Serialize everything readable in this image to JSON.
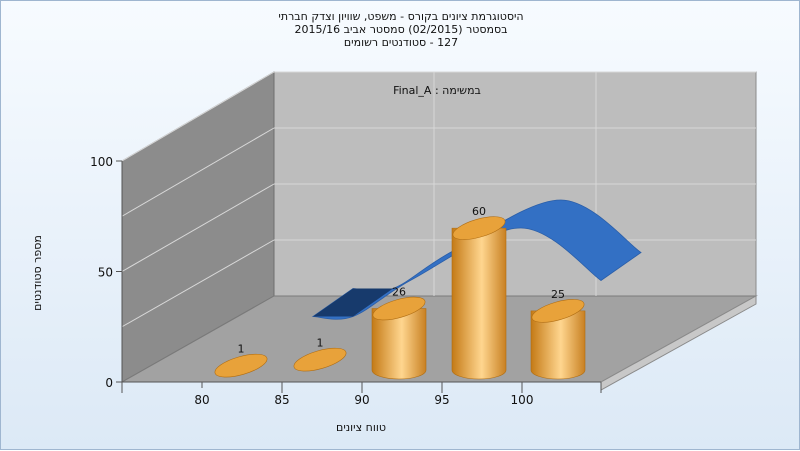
{
  "chart_data": {
    "type": "bar",
    "title_lines": [
      "היסטוגרמת ציונים בקורס - משפט, שוויון וצדק חברתי",
      "בסמסטר  (02/2015)  סמסטר אביב 2015/16",
      "127 - סטודנטים רשומים"
    ],
    "annotation": "במשימה : Final_A",
    "xlabel": "טווח ציונים",
    "ylabel": "מספר סטודנטים",
    "x_ticks": [
      "80",
      "85",
      "90",
      "95",
      "100"
    ],
    "y_ticks": [
      "0",
      "50",
      "100"
    ],
    "ylim": [
      0,
      100
    ],
    "grid": true,
    "bars": [
      {
        "label": "1",
        "value": 1
      },
      {
        "label": "1",
        "value": 1
      },
      {
        "label": "26",
        "value": 26
      },
      {
        "label": "60",
        "value": 60
      },
      {
        "label": "25",
        "value": 25
      }
    ],
    "series": [
      {
        "type": "curve",
        "values": [
          1,
          1,
          26,
          60,
          25
        ]
      }
    ],
    "colors": {
      "bar": "#e8a23a",
      "bar_light": "#ffd68f",
      "bar_dark": "#c47a16",
      "curve": "#3370c4",
      "curve_dark": "#173a6c",
      "back_wall": "#bdbdbd",
      "side_wall": "#8c8c8c",
      "floor": "#a2a2a2"
    }
  }
}
